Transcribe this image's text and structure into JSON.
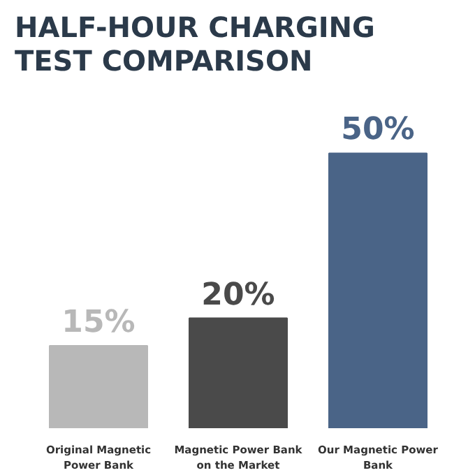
{
  "chart_data": {
    "type": "bar",
    "title": "HALF-HOUR CHARGING\nTEST COMPARISON",
    "categories": [
      "Original Magnetic Power Bank",
      "Magnetic Power Bank on the Market",
      "Our Magnetic Power Bank"
    ],
    "values": [
      15,
      20,
      50
    ],
    "colors": [
      "#b8b8b8",
      "#4a4a4a",
      "#4a6487"
    ],
    "value_labels": [
      "15%",
      "20%",
      "50%"
    ],
    "grid": false
  }
}
